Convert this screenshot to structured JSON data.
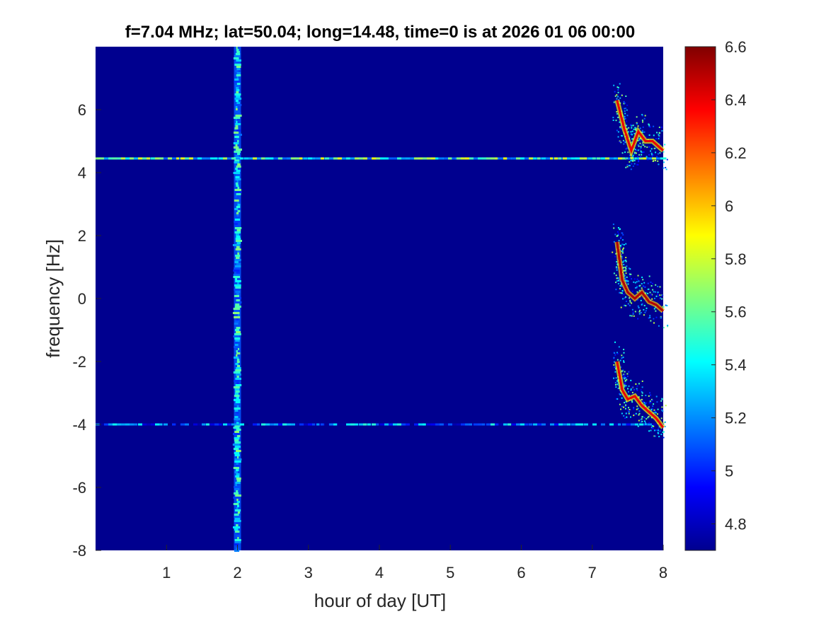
{
  "chart_data": {
    "type": "heatmap",
    "title": "f=7.04 MHz;  lat=50.04; long=14.48, time=0 is at 2026 01 06 00:00",
    "xlabel": "hour of day [UT]",
    "ylabel": "frequency [Hz]",
    "xlim": [
      0,
      8
    ],
    "ylim": [
      -8,
      8
    ],
    "x_ticks": [
      1,
      2,
      3,
      4,
      5,
      6,
      7,
      8
    ],
    "x_tick_labels": [
      "1",
      "2",
      "3",
      "4",
      "5",
      "6",
      "7",
      "8"
    ],
    "y_ticks": [
      -8,
      -6,
      -4,
      -2,
      0,
      2,
      4,
      6
    ],
    "y_tick_labels": [
      "-8",
      "-6",
      "-4",
      "-2",
      "0",
      "2",
      "4",
      "6"
    ],
    "colorbar": {
      "range": [
        4.7,
        6.6
      ],
      "colormap": "jet",
      "ticks": [
        4.8,
        5.0,
        5.2,
        5.4,
        5.6,
        5.8,
        6.0,
        6.2,
        6.4,
        6.6
      ],
      "tick_labels": [
        "4.8",
        "5",
        "5.2",
        "5.4",
        "5.6",
        "5.8",
        "6",
        "6.2",
        "6.4",
        "6.6"
      ]
    },
    "background_level": 4.75,
    "features": [
      {
        "kind": "vertical-band",
        "x": 2.0,
        "y_range": [
          -8,
          8
        ],
        "level": 5.5
      },
      {
        "kind": "horizontal-line",
        "y": 4.45,
        "x_range": [
          0,
          8
        ],
        "level": 5.5
      },
      {
        "kind": "horizontal-line",
        "y": -4.0,
        "x_range": [
          0,
          8
        ],
        "level": 5.1
      },
      {
        "kind": "trace",
        "points": [
          [
            7.35,
            6.3
          ],
          [
            7.45,
            5.4
          ],
          [
            7.55,
            4.7
          ],
          [
            7.65,
            5.3
          ],
          [
            7.75,
            5.0
          ],
          [
            7.85,
            5.0
          ],
          [
            8.0,
            4.7
          ]
        ],
        "level": 6.4
      },
      {
        "kind": "trace",
        "points": [
          [
            7.35,
            1.8
          ],
          [
            7.42,
            0.6
          ],
          [
            7.5,
            0.2
          ],
          [
            7.6,
            0.0
          ],
          [
            7.7,
            0.2
          ],
          [
            7.8,
            -0.1
          ],
          [
            7.9,
            -0.2
          ],
          [
            8.0,
            -0.4
          ]
        ],
        "level": 6.5
      },
      {
        "kind": "trace",
        "points": [
          [
            7.35,
            -2.0
          ],
          [
            7.42,
            -2.9
          ],
          [
            7.5,
            -3.2
          ],
          [
            7.6,
            -3.1
          ],
          [
            7.7,
            -3.4
          ],
          [
            7.8,
            -3.6
          ],
          [
            7.9,
            -3.8
          ],
          [
            8.0,
            -4.1
          ]
        ],
        "level": 6.4
      }
    ]
  }
}
